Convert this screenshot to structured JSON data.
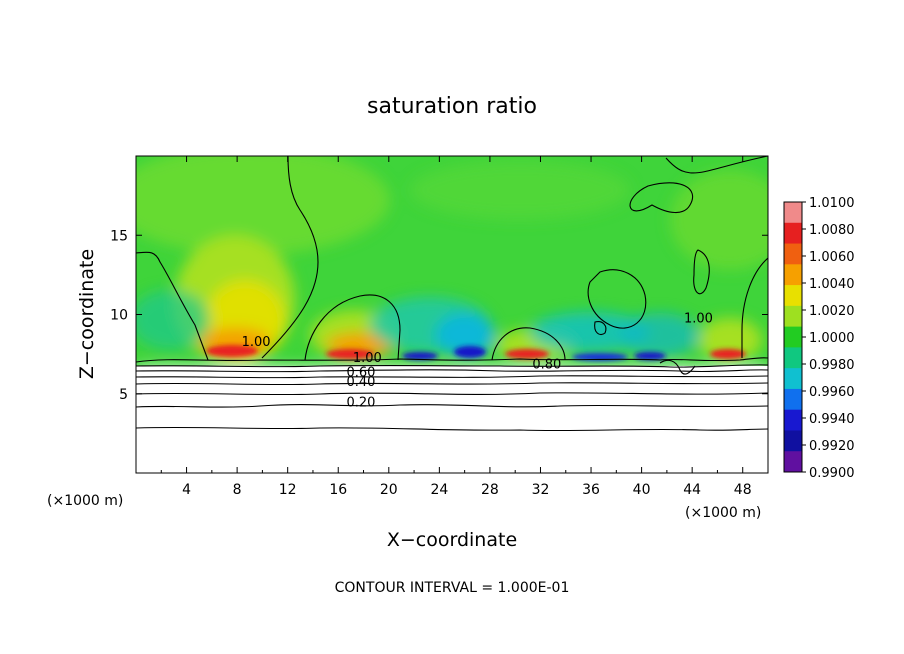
{
  "chart_data": {
    "type": "heatmap",
    "title": "saturation ratio",
    "xlabel": "X−coordinate",
    "ylabel": "Z−coordinate",
    "x_unit": "(×1000 m)",
    "z_unit": "(×1000 m)",
    "xlim": [
      0,
      50
    ],
    "ylim": [
      0,
      20
    ],
    "x_ticks": [
      "4",
      "8",
      "12",
      "16",
      "20",
      "24",
      "28",
      "32",
      "36",
      "40",
      "44",
      "48"
    ],
    "y_ticks": [
      "5",
      "10",
      "15"
    ],
    "colorbar": {
      "min": 0.99,
      "max": 1.01,
      "ticks": [
        "1.0100",
        "1.0080",
        "1.0060",
        "1.0040",
        "1.0020",
        "1.0000",
        "0.9980",
        "0.9960",
        "0.9940",
        "0.9920",
        "0.9900"
      ],
      "colors": [
        "#f08a8a",
        "#e62020",
        "#f06010",
        "#f6a000",
        "#e8e000",
        "#9ee020",
        "#22cc22",
        "#10c880",
        "#10c0d0",
        "#1070ee",
        "#1818d0",
        "#1010a0",
        "#6010a0"
      ]
    },
    "contour_interval": 0.1,
    "contour_labels": [
      {
        "text": "1.00",
        "x": 9.5,
        "z": 8.0
      },
      {
        "text": "1.00",
        "x": 18.3,
        "z": 7.0
      },
      {
        "text": "0.60",
        "x": 17.8,
        "z": 6.1
      },
      {
        "text": "0.40",
        "x": 17.8,
        "z": 5.5
      },
      {
        "text": "0.20",
        "x": 17.8,
        "z": 4.2
      },
      {
        "text": "0.80",
        "x": 32.5,
        "z": 6.6
      },
      {
        "text": "1.00",
        "x": 44.5,
        "z": 9.5
      }
    ],
    "legend": "right"
  },
  "footer": {
    "contour_interval_label": "CONTOUR INTERVAL = 1.000E-01"
  }
}
